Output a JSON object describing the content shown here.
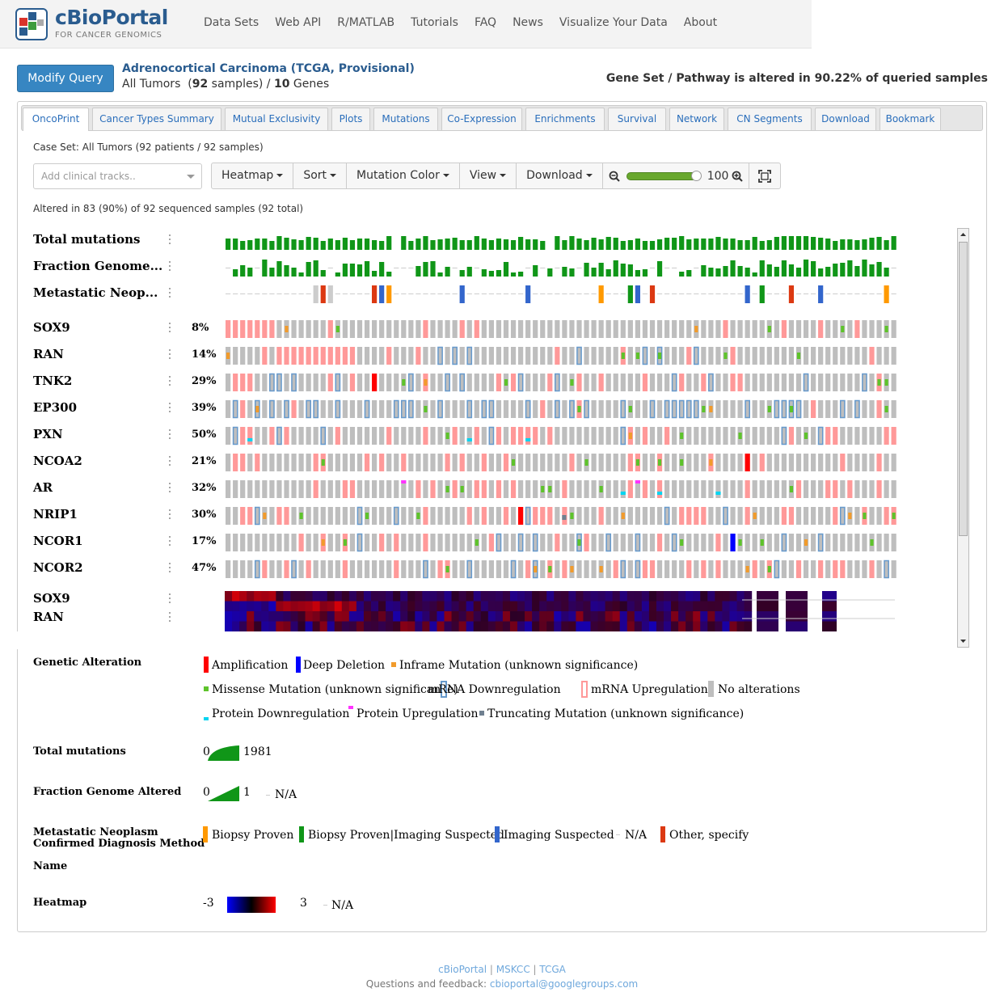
{
  "header": {
    "logo_title": "cBioPortal",
    "logo_subtitle": "FOR CANCER GENOMICS",
    "nav": [
      "Data Sets",
      "Web API",
      "R/MATLAB",
      "Tutorials",
      "FAQ",
      "News",
      "Visualize Your Data",
      "About"
    ]
  },
  "query": {
    "modify_label": "Modify Query",
    "study_name": "Adrenocortical Carcinoma (TCGA, Provisional)",
    "case_set_prefix": "All Tumors",
    "sample_count": "92",
    "samples_word": "samples) /",
    "gene_count": "10",
    "genes_word": "Genes",
    "altered_summary": "Gene Set / Pathway is altered in 90.22% of queried samples"
  },
  "tabs": [
    "OncoPrint",
    "Cancer Types Summary",
    "Mutual Exclusivity",
    "Plots",
    "Mutations",
    "Co-Expression",
    "Enrichments",
    "Survival",
    "Network",
    "CN Segments",
    "Download",
    "Bookmark"
  ],
  "active_tab": "OncoPrint",
  "oncoprint": {
    "case_set_text": "Case Set: All Tumors (92 patients / 92 samples)",
    "clinical_placeholder": "Add clinical tracks..",
    "toolbar": [
      "Heatmap",
      "Sort",
      "Mutation Color",
      "View",
      "Download"
    ],
    "zoom_value": "100",
    "altered_text": "Altered in 83 (90%) of 92 sequenced samples (92 total)",
    "clinical_tracks": [
      "Total mutations",
      "Fraction Genome...",
      "Metastatic Neop..."
    ],
    "genes": [
      {
        "name": "SOX9",
        "pct": "8%"
      },
      {
        "name": "RAN",
        "pct": "14%"
      },
      {
        "name": "TNK2",
        "pct": "29%"
      },
      {
        "name": "EP300",
        "pct": "39%"
      },
      {
        "name": "PXN",
        "pct": "50%"
      },
      {
        "name": "NCOA2",
        "pct": "21%"
      },
      {
        "name": "AR",
        "pct": "32%"
      },
      {
        "name": "NRIP1",
        "pct": "30%"
      },
      {
        "name": "NCOR1",
        "pct": "17%"
      },
      {
        "name": "NCOR2",
        "pct": "47%"
      }
    ],
    "heatmap_tracks": [
      "SOX9",
      "RAN"
    ],
    "sample_count": 92
  },
  "legend": {
    "genetic_title": "Genetic Alteration",
    "genetic_items": [
      {
        "label": "Amplification",
        "color": "#ff0000"
      },
      {
        "label": "Deep Deletion",
        "color": "#0000ff"
      },
      {
        "label": "Inframe Mutation (unknown significance)",
        "color": "#f19b2c"
      },
      {
        "label": "Missense Mutation (unknown significance)",
        "color": "#5ec32b"
      },
      {
        "label": "mRNA Downregulation",
        "color": "#6699cc"
      },
      {
        "label": "mRNA Upregulation",
        "color": "#ff9999"
      },
      {
        "label": "No alterations",
        "color": "#bebebe"
      },
      {
        "label": "Protein Downregulation",
        "color": "#00d4f0"
      },
      {
        "label": "Protein Upregulation",
        "color": "#ff33ff"
      },
      {
        "label": "Truncating Mutation (unknown significance)",
        "color": "#708090"
      }
    ],
    "total_mut_title": "Total mutations",
    "total_mut_min": "0",
    "total_mut_max": "1981",
    "fga_title": "Fraction Genome Altered",
    "fga_min": "0",
    "fga_max": "1",
    "fga_na": "N/A",
    "meta_title_1": "Metastatic Neoplasm",
    "meta_title_2": "Confirmed Diagnosis Method",
    "meta_title_3": "Name",
    "meta_items": [
      {
        "label": "Biopsy Proven",
        "color": "#ff9900"
      },
      {
        "label": "Biopsy Proven|Imaging Suspected",
        "color": "#109618"
      },
      {
        "label": "Imaging Suspected",
        "color": "#3366cc"
      },
      {
        "label": "N/A",
        "color": "#cccccc"
      },
      {
        "label": "Other, specify",
        "color": "#dc3912"
      }
    ],
    "heatmap_title": "Heatmap",
    "heatmap_min": "-3",
    "heatmap_max": "3",
    "heatmap_na": "N/A"
  },
  "footer": {
    "links": [
      "cBioPortal",
      "MSKCC",
      "TCGA"
    ],
    "feedback_prefix": "Questions and feedback:",
    "email": "cbioportal@googlegroups.com"
  }
}
